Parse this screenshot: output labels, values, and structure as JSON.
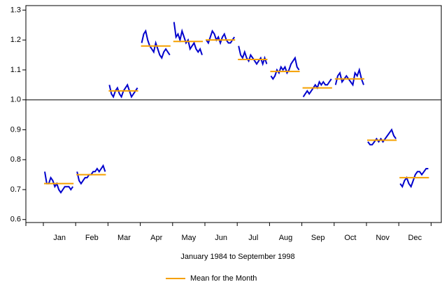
{
  "chart_data": {
    "type": "subseries",
    "xlabel": "January 1984 to September 1998",
    "categories": [
      "Jan",
      "Feb",
      "Mar",
      "Apr",
      "May",
      "Jun",
      "Jul",
      "Aug",
      "Sep",
      "Oct",
      "Nov",
      "Dec"
    ],
    "subseries": {
      "color": "#0000cc",
      "values": [
        [
          0.76,
          0.72,
          0.72,
          0.74,
          0.73,
          0.71,
          0.72,
          0.7,
          0.69,
          0.7,
          0.71,
          0.71,
          0.71,
          0.7,
          0.71
        ],
        [
          0.76,
          0.73,
          0.72,
          0.73,
          0.74,
          0.74,
          0.75,
          0.75,
          0.76,
          0.76,
          0.77,
          0.76,
          0.77,
          0.78,
          0.76
        ],
        [
          1.05,
          1.02,
          1.01,
          1.03,
          1.04,
          1.02,
          1.01,
          1.03,
          1.04,
          1.05,
          1.03,
          1.01,
          1.02,
          1.03,
          1.04
        ],
        [
          1.19,
          1.22,
          1.23,
          1.2,
          1.18,
          1.17,
          1.16,
          1.19,
          1.17,
          1.15,
          1.14,
          1.16,
          1.17,
          1.16,
          1.15
        ],
        [
          1.26,
          1.21,
          1.22,
          1.2,
          1.23,
          1.21,
          1.19,
          1.2,
          1.17,
          1.18,
          1.19,
          1.17,
          1.16,
          1.17,
          1.15
        ],
        [
          1.2,
          1.19,
          1.21,
          1.23,
          1.22,
          1.2,
          1.21,
          1.19,
          1.21,
          1.22,
          1.2,
          1.19,
          1.19,
          1.2,
          1.21
        ],
        [
          1.18,
          1.15,
          1.14,
          1.16,
          1.14,
          1.13,
          1.15,
          1.14,
          1.13,
          1.12,
          1.13,
          1.14,
          1.12,
          1.14,
          1.12
        ],
        [
          1.08,
          1.07,
          1.08,
          1.1,
          1.09,
          1.11,
          1.1,
          1.11,
          1.09,
          1.1,
          1.12,
          1.13,
          1.14,
          1.11,
          1.1
        ],
        [
          1.01,
          1.02,
          1.03,
          1.02,
          1.03,
          1.04,
          1.05,
          1.04,
          1.06,
          1.05,
          1.06,
          1.05,
          1.05,
          1.06,
          1.07
        ],
        [
          1.05,
          1.08,
          1.09,
          1.06,
          1.07,
          1.08,
          1.07,
          1.06,
          1.05,
          1.09,
          1.08,
          1.1,
          1.07,
          1.05
        ],
        [
          0.86,
          0.85,
          0.85,
          0.86,
          0.87,
          0.86,
          0.87,
          0.86,
          0.87,
          0.88,
          0.89,
          0.9,
          0.88,
          0.87
        ],
        [
          0.72,
          0.71,
          0.73,
          0.74,
          0.72,
          0.71,
          0.73,
          0.75,
          0.76,
          0.76,
          0.75,
          0.76,
          0.77,
          0.77
        ]
      ]
    },
    "series": [
      {
        "name": "Mean for the Month",
        "color": "#f5a000",
        "values": [
          0.72,
          0.75,
          1.03,
          1.18,
          1.195,
          1.2,
          1.135,
          1.095,
          1.04,
          1.07,
          0.865,
          0.74
        ]
      }
    ],
    "refline": 1.0,
    "ylim": [
      0.59,
      1.315
    ],
    "yticks": [
      0.6,
      0.7,
      0.8,
      0.9,
      {
        "value": 1.0,
        "label": "1.0"
      },
      1.1,
      1.2,
      1.3
    ]
  }
}
